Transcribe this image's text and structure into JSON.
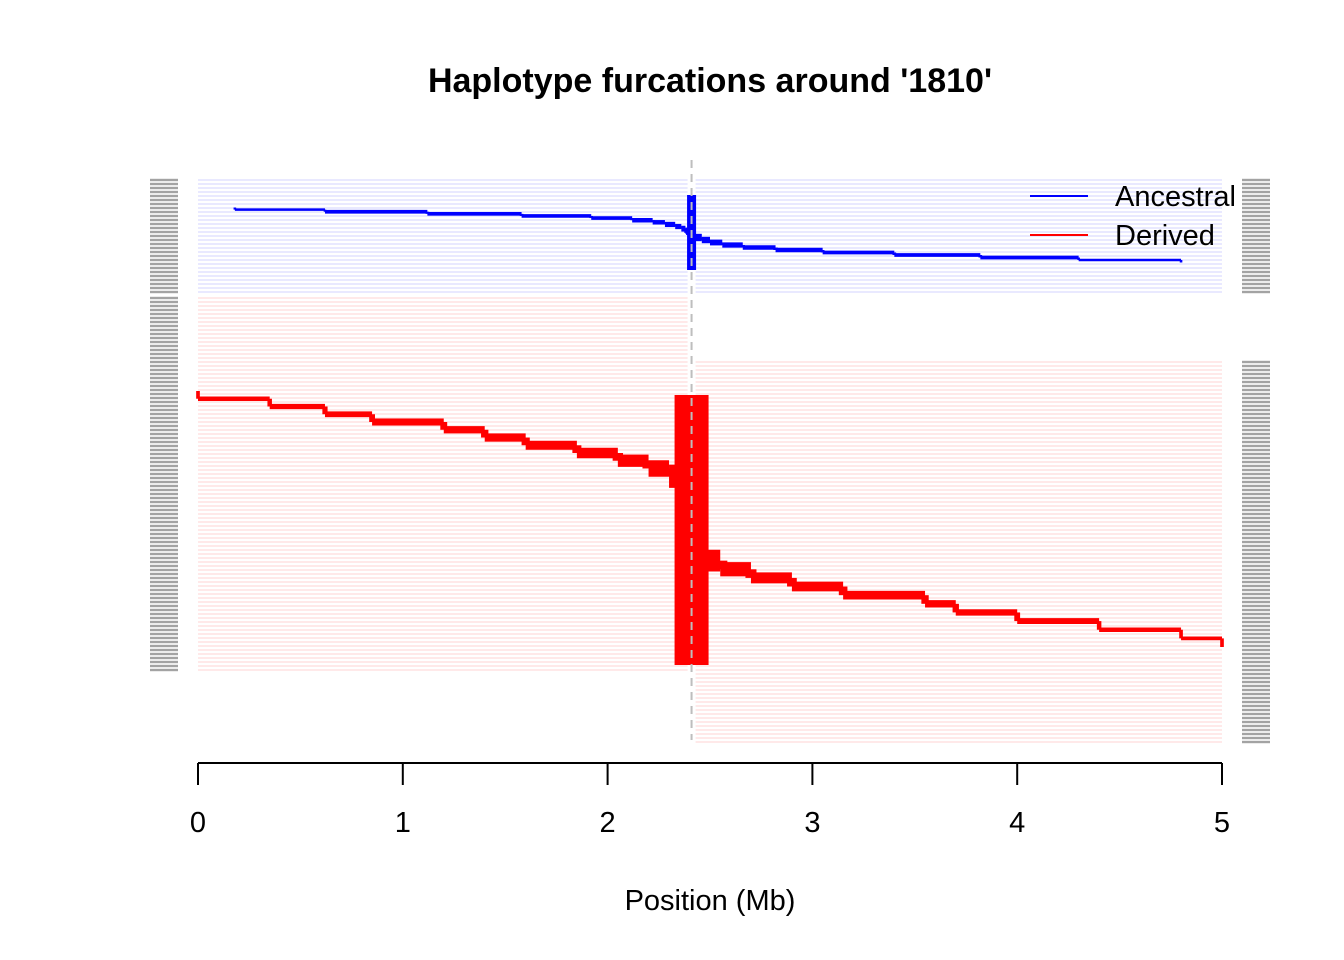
{
  "chart_data": {
    "type": "line",
    "title": "Haplotype furcations around '1810'",
    "xlabel": "Position (Mb)",
    "ylabel": "",
    "xlim": [
      0,
      5
    ],
    "x_ticks": [
      "0",
      "1",
      "2",
      "3",
      "4",
      "5"
    ],
    "focal_position_mb": 2.41,
    "legend": {
      "placement": "top-right",
      "entries": [
        {
          "label": "Ancestral",
          "color": "#0000ff"
        },
        {
          "label": "Derived",
          "color": "#ff0000"
        }
      ]
    },
    "series": [
      {
        "name": "Ancestral",
        "color": "#0000ff",
        "left_furcation": {
          "positions": [
            2.41,
            2.4,
            2.39,
            2.38,
            2.36,
            2.33,
            2.28,
            2.22,
            2.12,
            1.92,
            1.58,
            1.12,
            0.62,
            0.18
          ],
          "weights": [
            12,
            7,
            6,
            5,
            4,
            4,
            3,
            3,
            2,
            2,
            2,
            2,
            1,
            1
          ]
        },
        "right_furcation": {
          "positions": [
            2.41,
            2.43,
            2.46,
            2.5,
            2.56,
            2.66,
            2.82,
            3.05,
            3.4,
            3.82,
            4.3,
            4.8
          ],
          "weights": [
            12,
            8,
            6,
            5,
            4,
            3,
            3,
            2,
            2,
            2,
            1,
            1
          ]
        }
      },
      {
        "name": "Derived",
        "color": "#ff0000",
        "left_furcation": {
          "positions": [
            2.41,
            2.36,
            2.3,
            2.2,
            2.05,
            1.85,
            1.6,
            1.4,
            1.2,
            0.85,
            0.62,
            0.35,
            0.0
          ],
          "weights": [
            176,
            80,
            40,
            22,
            16,
            12,
            10,
            8,
            7,
            5,
            4,
            3,
            2
          ]
        },
        "right_furcation": {
          "positions": [
            2.41,
            2.45,
            2.55,
            2.7,
            2.9,
            3.15,
            3.55,
            3.7,
            4.0,
            4.4,
            4.8,
            5.0
          ],
          "weights": [
            176,
            70,
            30,
            18,
            14,
            11,
            8,
            6,
            5,
            3,
            2,
            2
          ]
        }
      }
    ]
  }
}
